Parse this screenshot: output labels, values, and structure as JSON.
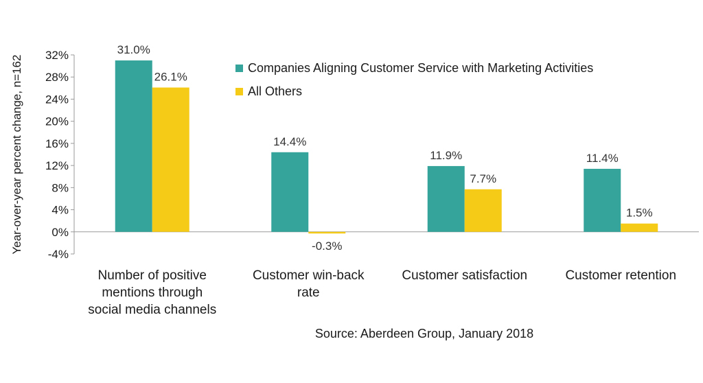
{
  "chart_data": {
    "type": "bar",
    "title": "",
    "xlabel": "",
    "ylabel": "Year-over-year percent change, n=162",
    "categories": [
      [
        "Number of positive",
        "mentions through",
        "social media channels"
      ],
      [
        "Customer win-back",
        "rate"
      ],
      [
        "Customer satisfaction"
      ],
      [
        "Customer retention"
      ]
    ],
    "series": [
      {
        "name": "Companies Aligning Customer Service with Marketing Activities",
        "color": "#35A49A",
        "values": [
          31.0,
          14.4,
          11.9,
          11.4
        ],
        "labels": [
          "31.0%",
          "14.4%",
          "11.9%",
          "11.4%"
        ]
      },
      {
        "name": "All Others",
        "color": "#F6CB18",
        "values": [
          26.1,
          -0.3,
          7.7,
          1.5
        ],
        "labels": [
          "26.1%",
          "-0.3%",
          "7.7%",
          "1.5%"
        ]
      }
    ],
    "ylim": [
      -4,
      32
    ],
    "yticks": [
      32,
      28,
      24,
      20,
      16,
      12,
      8,
      4,
      0,
      -4
    ],
    "ytick_labels": [
      "32%",
      "28%",
      "24%",
      "20%",
      "16%",
      "12%",
      "8%",
      "4%",
      "0%",
      "-4%"
    ],
    "grid": false,
    "legend_position": "top-right",
    "source": "Source: Aberdeen Group, January 2018"
  }
}
